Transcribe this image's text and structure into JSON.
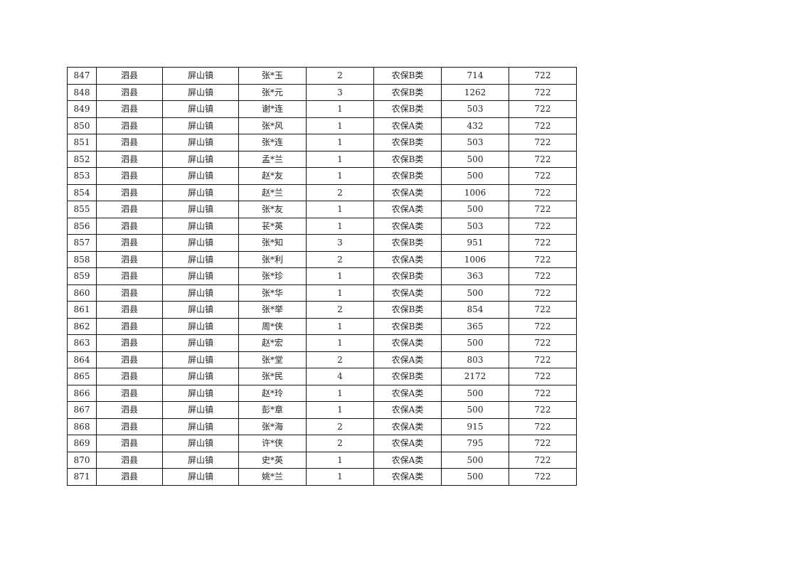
{
  "table": {
    "rows": [
      [
        "847",
        "泗县",
        "屏山镇",
        "张*玉",
        "2",
        "农保B类",
        "714",
        "722"
      ],
      [
        "848",
        "泗县",
        "屏山镇",
        "张*元",
        "3",
        "农保B类",
        "1262",
        "722"
      ],
      [
        "849",
        "泗县",
        "屏山镇",
        "谢*连",
        "1",
        "农保B类",
        "503",
        "722"
      ],
      [
        "850",
        "泗县",
        "屏山镇",
        "张*风",
        "1",
        "农保A类",
        "432",
        "722"
      ],
      [
        "851",
        "泗县",
        "屏山镇",
        "张*连",
        "1",
        "农保B类",
        "503",
        "722"
      ],
      [
        "852",
        "泗县",
        "屏山镇",
        "孟*兰",
        "1",
        "农保B类",
        "500",
        "722"
      ],
      [
        "853",
        "泗县",
        "屏山镇",
        "赵*友",
        "1",
        "农保B类",
        "500",
        "722"
      ],
      [
        "854",
        "泗县",
        "屏山镇",
        "赵*兰",
        "2",
        "农保A类",
        "1006",
        "722"
      ],
      [
        "855",
        "泗县",
        "屏山镇",
        "张*友",
        "1",
        "农保A类",
        "500",
        "722"
      ],
      [
        "856",
        "泗县",
        "屏山镇",
        "苌*英",
        "1",
        "农保A类",
        "503",
        "722"
      ],
      [
        "857",
        "泗县",
        "屏山镇",
        "张*知",
        "3",
        "农保B类",
        "951",
        "722"
      ],
      [
        "858",
        "泗县",
        "屏山镇",
        "张*利",
        "2",
        "农保A类",
        "1006",
        "722"
      ],
      [
        "859",
        "泗县",
        "屏山镇",
        "张*珍",
        "1",
        "农保B类",
        "363",
        "722"
      ],
      [
        "860",
        "泗县",
        "屏山镇",
        "张*华",
        "1",
        "农保A类",
        "500",
        "722"
      ],
      [
        "861",
        "泗县",
        "屏山镇",
        "张*举",
        "2",
        "农保B类",
        "854",
        "722"
      ],
      [
        "862",
        "泗县",
        "屏山镇",
        "周*侠",
        "1",
        "农保B类",
        "365",
        "722"
      ],
      [
        "863",
        "泗县",
        "屏山镇",
        "赵*宏",
        "1",
        "农保A类",
        "500",
        "722"
      ],
      [
        "864",
        "泗县",
        "屏山镇",
        "张*堂",
        "2",
        "农保A类",
        "803",
        "722"
      ],
      [
        "865",
        "泗县",
        "屏山镇",
        "张*民",
        "4",
        "农保B类",
        "2172",
        "722"
      ],
      [
        "866",
        "泗县",
        "屏山镇",
        "赵*玲",
        "1",
        "农保A类",
        "500",
        "722"
      ],
      [
        "867",
        "泗县",
        "屏山镇",
        "彭*章",
        "1",
        "农保A类",
        "500",
        "722"
      ],
      [
        "868",
        "泗县",
        "屏山镇",
        "张*海",
        "2",
        "农保A类",
        "915",
        "722"
      ],
      [
        "869",
        "泗县",
        "屏山镇",
        "许*侠",
        "2",
        "农保A类",
        "795",
        "722"
      ],
      [
        "870",
        "泗县",
        "屏山镇",
        "史*英",
        "1",
        "农保A类",
        "500",
        "722"
      ],
      [
        "871",
        "泗县",
        "屏山镇",
        "姚*兰",
        "1",
        "农保A类",
        "500",
        "722"
      ]
    ]
  }
}
